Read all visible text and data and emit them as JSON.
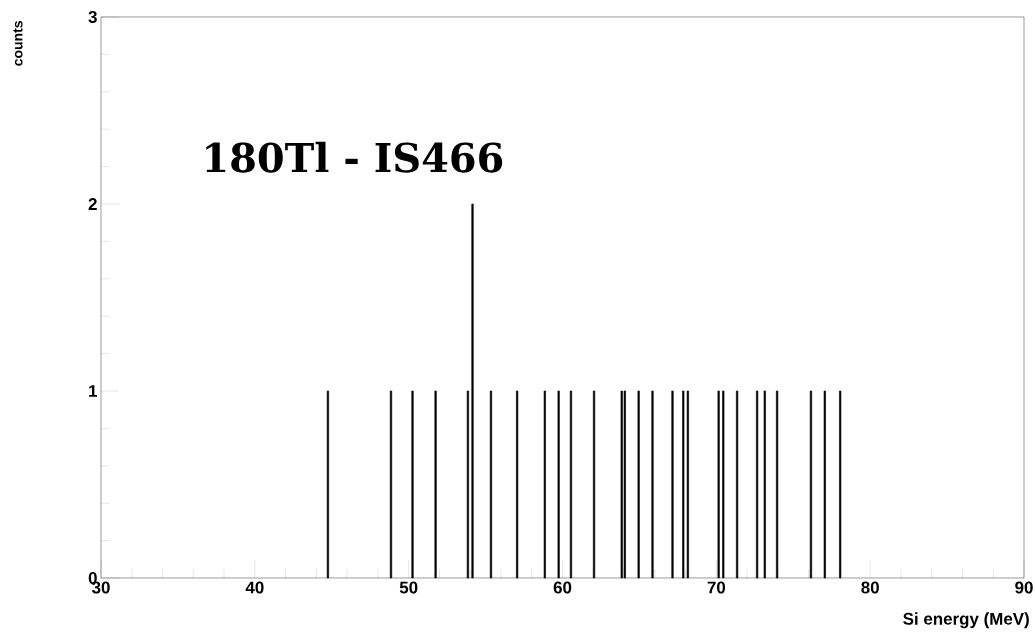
{
  "chart_data": {
    "type": "histogram",
    "title": "180Tl - IS466",
    "xlabel": "Si energy (MeV)",
    "ylabel": "counts",
    "color": "#000000",
    "bins": [
      44.7,
      44.8,
      48.8,
      48.9,
      50.2,
      50.3,
      51.7,
      51.8,
      53.8,
      53.9,
      54.1,
      54.2,
      55.3,
      55.4,
      57.0,
      57.1,
      58.8,
      58.9,
      59.7,
      59.8,
      60.5,
      60.6,
      62.0,
      62.1,
      63.8,
      63.9,
      64.0,
      64.1,
      64.9,
      65.0,
      65.8,
      65.9,
      67.1,
      67.2,
      67.8,
      67.9,
      68.1,
      68.2,
      70.1,
      70.2,
      70.4,
      70.5,
      71.3,
      71.4,
      72.6,
      72.7,
      73.1,
      73.2,
      73.9,
      74.0,
      76.1,
      76.2,
      77.0,
      77.1,
      78.0,
      78.1
    ],
    "values": [
      1,
      0,
      1,
      0,
      1,
      0,
      1,
      0,
      1,
      0,
      2,
      0,
      1,
      0,
      1,
      0,
      1,
      0,
      1,
      0,
      1,
      0,
      1,
      0,
      1,
      0,
      1,
      0,
      1,
      0,
      1,
      0,
      1,
      0,
      1,
      0,
      1,
      0,
      1,
      0,
      1,
      0,
      1,
      0,
      1,
      0,
      1,
      0,
      1,
      0,
      1,
      0,
      1,
      0,
      1
    ],
    "xlim": [
      30,
      90
    ],
    "ylim": [
      0,
      3
    ],
    "xticks": [
      30,
      40,
      50,
      60,
      70,
      80,
      90
    ],
    "yticks": [
      0,
      1,
      2,
      3
    ],
    "grid": false
  }
}
